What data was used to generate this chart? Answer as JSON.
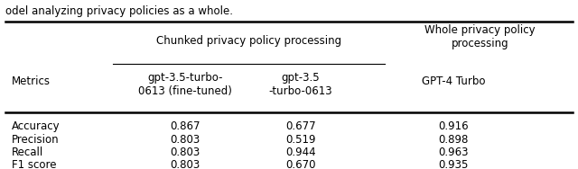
{
  "caption_text": "odel analyzing privacy policies as a whole.",
  "chunked_header": "Chunked privacy policy processing",
  "whole_header": "Whole privacy policy\nprocessing",
  "col1_subheader": "gpt-3.5-turbo-\n0613 (fine-tuned)",
  "col2_subheader": "gpt-3.5\n-turbo-0613",
  "col3_subheader": "GPT-4 Turbo",
  "row_label": "Metrics",
  "rows": [
    {
      "metric": "Accuracy",
      "v1": "0.867",
      "v2": "0.677",
      "v3": "0.916"
    },
    {
      "metric": "Precision",
      "v1": "0.803",
      "v2": "0.519",
      "v3": "0.898"
    },
    {
      "metric": "Recall",
      "v1": "0.803",
      "v2": "0.944",
      "v3": "0.963"
    },
    {
      "metric": "F1 score",
      "v1": "0.803",
      "v2": "0.670",
      "v3": "0.935"
    }
  ],
  "font_size": 8.5,
  "font_family": "DejaVu Sans"
}
